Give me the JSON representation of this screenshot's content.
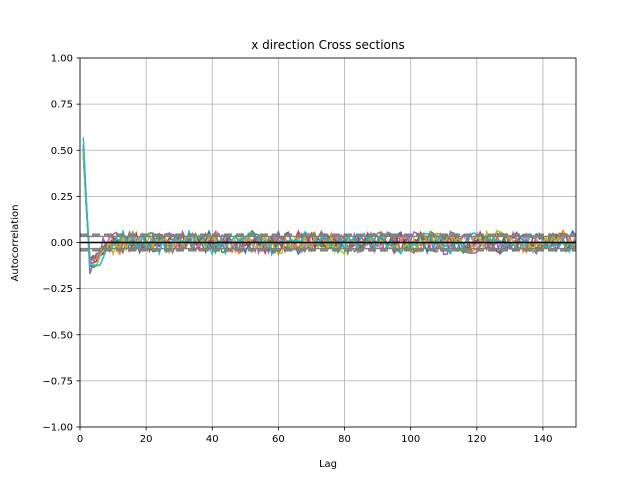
{
  "chart_data": {
    "type": "line",
    "title": "x direction Cross sections",
    "xlabel": "Lag",
    "ylabel": "Autocorrelation",
    "xlim": [
      0,
      150
    ],
    "ylim": [
      -1.0,
      1.0
    ],
    "grid": true,
    "x_ticks": [
      0,
      20,
      40,
      60,
      80,
      100,
      120,
      140
    ],
    "y_ticks": [
      -1.0,
      -0.75,
      -0.5,
      -0.25,
      0.0,
      0.25,
      0.5,
      0.75,
      1.0
    ],
    "x_tick_labels": [
      "0",
      "20",
      "40",
      "60",
      "80",
      "100",
      "120",
      "140"
    ],
    "y_tick_labels": [
      "−1.00",
      "−0.75",
      "−0.50",
      "−0.25",
      "0.00",
      "0.25",
      "0.50",
      "0.75",
      "1.00"
    ],
    "reference_lines": [
      {
        "y": 0.0,
        "style": "solid",
        "color": "#000000"
      },
      {
        "y": 0.0326,
        "style": "solid",
        "color": "#7f7f7f"
      },
      {
        "y": -0.0326,
        "style": "solid",
        "color": "#7f7f7f"
      },
      {
        "y": 0.0428,
        "style": "dashed",
        "color": "#7f7f7f"
      },
      {
        "y": -0.0428,
        "style": "dashed",
        "color": "#7f7f7f"
      }
    ],
    "colors": [
      "#1f77b4",
      "#ff7f0e",
      "#2ca02c",
      "#d62728",
      "#9467bd",
      "#8c564b",
      "#e377c2",
      "#7f7f7f",
      "#bcbd22",
      "#17becf"
    ],
    "series": [
      {
        "color": "#1f77b4",
        "peak": 0.52,
        "dip": -0.13,
        "dip_lag": 5
      },
      {
        "color": "#ff7f0e",
        "peak": 0.5,
        "dip": -0.1,
        "dip_lag": 4
      },
      {
        "color": "#2ca02c",
        "peak": 0.49,
        "dip": -0.09,
        "dip_lag": 5
      },
      {
        "color": "#d62728",
        "peak": 0.51,
        "dip": -0.11,
        "dip_lag": 4
      },
      {
        "color": "#9467bd",
        "peak": 0.53,
        "dip": -0.18,
        "dip_lag": 3
      },
      {
        "color": "#8c564b",
        "peak": 0.48,
        "dip": -0.08,
        "dip_lag": 5
      },
      {
        "color": "#e377c2",
        "peak": 0.5,
        "dip": -0.1,
        "dip_lag": 4
      },
      {
        "color": "#7f7f7f",
        "peak": 0.47,
        "dip": -0.09,
        "dip_lag": 4
      },
      {
        "color": "#bcbd22",
        "peak": 0.49,
        "dip": -0.12,
        "dip_lag": 5
      },
      {
        "color": "#17becf",
        "peak": 0.57,
        "dip": -0.12,
        "dip_lag": 6
      }
    ],
    "noise_amplitude": 0.045,
    "max_lag": 149
  }
}
